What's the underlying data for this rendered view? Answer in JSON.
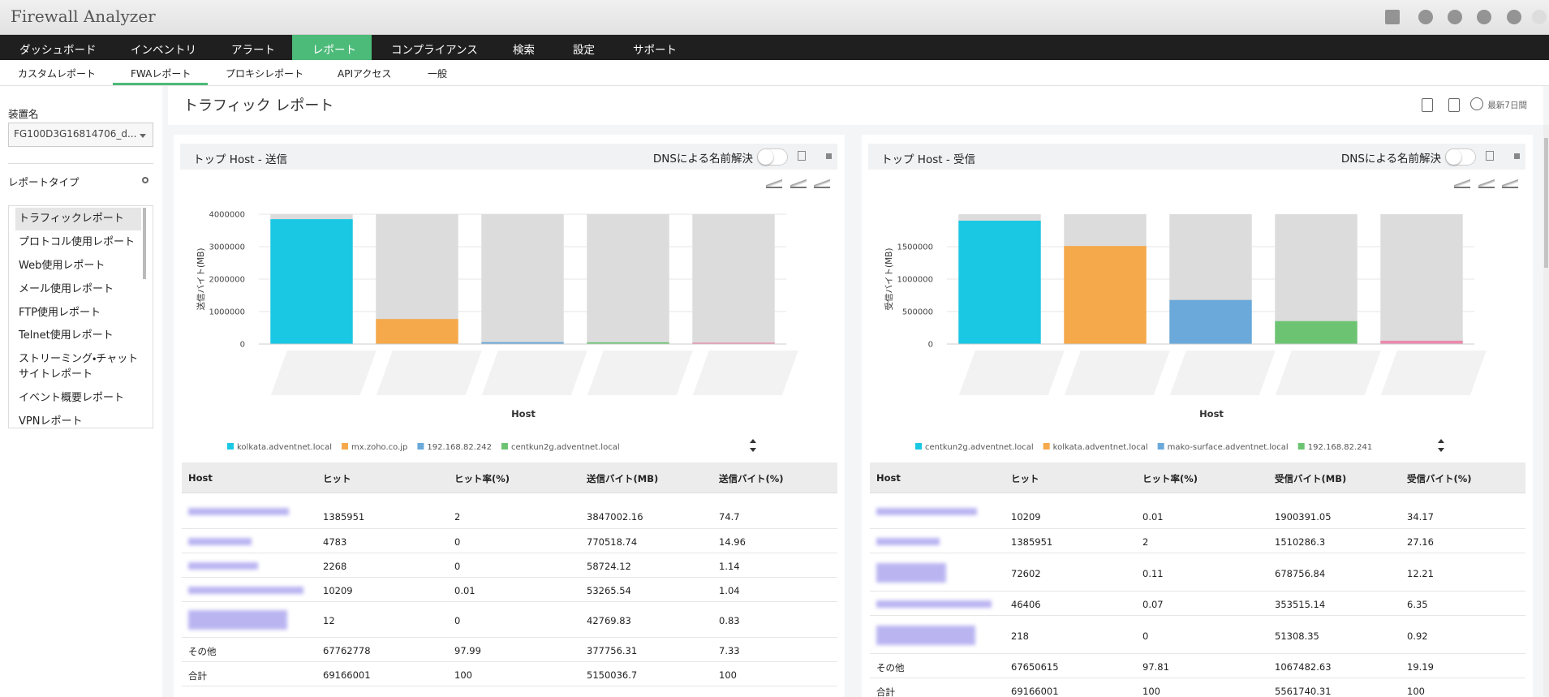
{
  "app_title": "Firewall Analyzer",
  "nav": {
    "items": [
      "ダッシュボード",
      "インベントリ",
      "アラート",
      "レポート",
      "コンプライアンス",
      "検索",
      "設定",
      "サポート"
    ],
    "active": 3
  },
  "subnav": {
    "items": [
      "カスタムレポート",
      "FWAレポート",
      "プロキシレポート",
      "APIアクセス",
      "一般"
    ],
    "active": 1
  },
  "sidebar": {
    "device_label": "装置名",
    "device_value": "FG100D3G16814706_d...",
    "report_type_label": "レポートタイプ",
    "report_types": [
      "トラフィックレポート",
      "プロトコル使用レポート",
      "Web使用レポート",
      "メール使用レポート",
      "FTP使用レポート",
      "Telnet使用レポート",
      "ストリーミング・チャットサイトレポート",
      "イベント概要レポート",
      "VPNレポート"
    ],
    "selected": 0
  },
  "page_title": "トラフィック レポート",
  "period": "最新7日間",
  "panels": [
    {
      "title": "トップ Host - 送信",
      "dns_label": "DNSによる名前解決",
      "table": {
        "headers": [
          "Host",
          "ヒット",
          "ヒット率(%)",
          "送信バイト(MB)",
          "送信バイト(%)"
        ],
        "rows": [
          [
            null,
            1385951,
            2,
            3847002.16,
            74.7
          ],
          [
            null,
            4783,
            0,
            770518.74,
            14.96
          ],
          [
            null,
            2268,
            0,
            58724.12,
            1.14
          ],
          [
            null,
            10209,
            0.01,
            53265.54,
            1.04
          ],
          [
            null,
            12,
            0,
            42769.83,
            0.83
          ],
          [
            "その他",
            67762778,
            97.99,
            377756.31,
            7.33
          ],
          [
            "合計",
            69166001,
            100,
            5150036.7,
            100
          ]
        ]
      }
    },
    {
      "title": "トップ Host - 受信",
      "dns_label": "DNSによる名前解決",
      "table": {
        "headers": [
          "Host",
          "ヒット",
          "ヒット率(%)",
          "受信バイト(MB)",
          "受信バイト(%)"
        ],
        "rows": [
          [
            null,
            10209,
            0.01,
            1900391.05,
            34.17
          ],
          [
            null,
            1385951,
            2,
            1510286.3,
            27.16
          ],
          [
            null,
            72602,
            0.11,
            678756.84,
            12.21
          ],
          [
            null,
            46406,
            0.07,
            353515.14,
            6.35
          ],
          [
            null,
            218,
            0,
            51308.35,
            0.92
          ],
          [
            "その他",
            67650615,
            97.81,
            1067482.63,
            19.19
          ],
          [
            "合計",
            69166001,
            100,
            5561740.31,
            100
          ]
        ]
      }
    }
  ],
  "chart_data": [
    {
      "type": "bar",
      "x_label": "Host",
      "y_label": "送信バイト(MB)",
      "categories": [
        null,
        null,
        null,
        null,
        null
      ],
      "values": [
        3847002.16,
        770518.74,
        58724.12,
        53265.54,
        42769.83
      ],
      "colors": [
        "#1ac8e4",
        "#f5a94a",
        "#6aa9da",
        "#6cc472",
        "#ea8aac"
      ],
      "legend": [
        "kolkata.adventnet.local",
        "mx.zoho.co.jp",
        "192.168.82.242",
        "centkun2g.adventnet.local"
      ],
      "ylim": [
        0,
        4000000
      ],
      "yticks": [
        0,
        1000000,
        2000000,
        3000000,
        4000000
      ],
      "grid": true
    },
    {
      "type": "bar",
      "x_label": "Host",
      "y_label": "受信バイト(MB)",
      "categories": [
        null,
        null,
        null,
        null,
        null
      ],
      "values": [
        1900391.05,
        1510286.3,
        678756.84,
        353515.14,
        51308.35
      ],
      "colors": [
        "#1ac8e4",
        "#f5a94a",
        "#6aa9da",
        "#6cc472",
        "#ea8aac"
      ],
      "legend": [
        "centkun2g.adventnet.local",
        "kolkata.adventnet.local",
        "mako-surface.adventnet.local",
        "192.168.82.241"
      ],
      "ylim": [
        0,
        2000000
      ],
      "yticks": [
        0,
        500000,
        1000000,
        1500000
      ],
      "grid": true
    }
  ]
}
